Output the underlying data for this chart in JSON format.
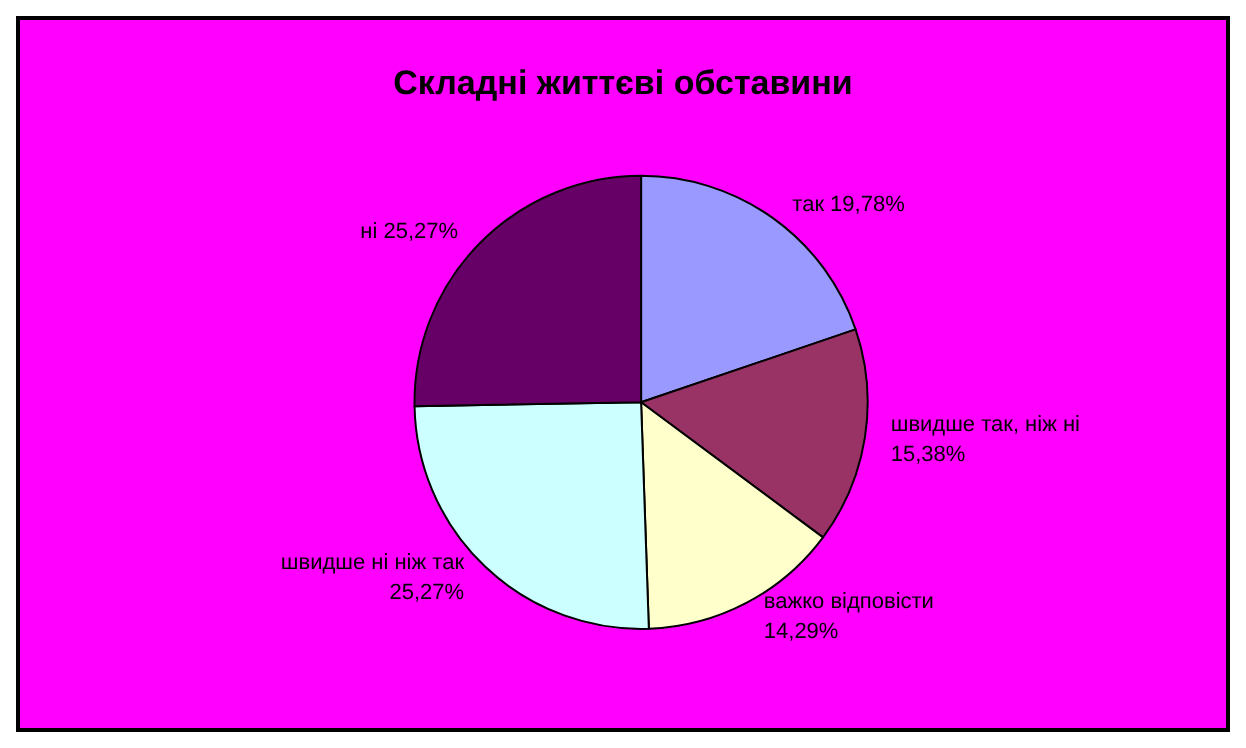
{
  "chart_data": {
    "type": "pie",
    "title": "Складні життєві обставини",
    "categories": [
      "так",
      "швидше так, ніж ні",
      "важко відповісти",
      "швидше ні ніж так",
      "ні"
    ],
    "values": [
      19.78,
      15.38,
      14.29,
      25.27,
      25.27
    ],
    "value_labels": [
      "19,78%",
      "15,38%",
      "14,29%",
      "25,27%",
      "25,27%"
    ],
    "colors": [
      "#9999ff",
      "#993366",
      "#ffffcc",
      "#ccffff",
      "#660066"
    ],
    "legend": false
  }
}
